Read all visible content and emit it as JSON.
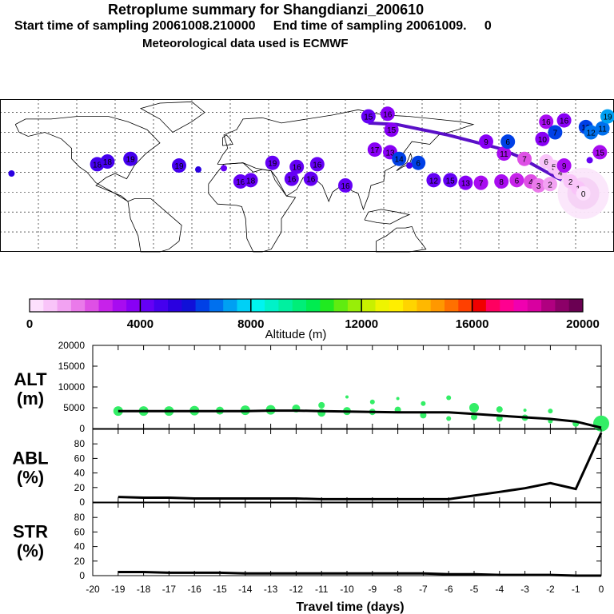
{
  "header": {
    "title": "Retroplume summary for Shangdianzi_200610",
    "sampling_line": "Start time of sampling 20061008.210000     End time of sampling 20061009.     0",
    "met_line": "Meteorological data used is ECMWF"
  },
  "colors": {
    "alt_points": "#33ee66",
    "map_outline": "#000000"
  },
  "colorbar": {
    "tick_labels": [
      "0",
      "4000",
      "8000",
      "12000",
      "16000",
      "20000"
    ],
    "label": "Altitude (m)",
    "colors": [
      "#fde0fd",
      "#f9c4f9",
      "#f2a2f2",
      "#ea7aea",
      "#de50e5",
      "#c722ea",
      "#a80cf0",
      "#8800f5",
      "#6500f5",
      "#4500ee",
      "#2a00e0",
      "#1010d8",
      "#0040e6",
      "#0070ee",
      "#00a0f2",
      "#00d0f6",
      "#00f4f0",
      "#00f2c8",
      "#00f0a0",
      "#00ee78",
      "#00ec50",
      "#20ea20",
      "#60ec10",
      "#98ee08",
      "#c8f000",
      "#eef400",
      "#ffee00",
      "#ffd400",
      "#ffb800",
      "#ff9800",
      "#ff7000",
      "#ff4000",
      "#f00000",
      "#ff0060",
      "#ff0090",
      "#f000b0",
      "#d800a0",
      "#b00080",
      "#8c0068",
      "#6a0052"
    ]
  },
  "map": {
    "plume_points": [
      {
        "lon": -171,
        "lat": 29,
        "alt": 5200,
        "label": ""
      },
      {
        "lon": -104,
        "lat": 36,
        "alt": 4800,
        "label": "18"
      },
      {
        "lon": -96,
        "lat": 38,
        "alt": 4700,
        "label": "18"
      },
      {
        "lon": -78,
        "lat": 40,
        "alt": 4500,
        "label": "19"
      },
      {
        "lon": -40,
        "lat": 35,
        "alt": 4800,
        "label": "19"
      },
      {
        "lon": -25,
        "lat": 32,
        "alt": 5000,
        "label": ""
      },
      {
        "lon": -5,
        "lat": 33,
        "alt": 4400,
        "label": ""
      },
      {
        "lon": 8,
        "lat": 23,
        "alt": 4000,
        "label": "16"
      },
      {
        "lon": 16,
        "lat": 24,
        "alt": 4000,
        "label": "18"
      },
      {
        "lon": 33,
        "lat": 37,
        "alt": 4200,
        "label": "19"
      },
      {
        "lon": 52,
        "lat": 34,
        "alt": 4300,
        "label": "16"
      },
      {
        "lon": 48,
        "lat": 25,
        "alt": 4100,
        "label": "16"
      },
      {
        "lon": 63,
        "lat": 25,
        "alt": 4100,
        "label": "16"
      },
      {
        "lon": 68,
        "lat": 36,
        "alt": 4200,
        "label": "16"
      },
      {
        "lon": 90,
        "lat": 20,
        "alt": 4000,
        "label": "16"
      },
      {
        "lon": 108,
        "lat": 72,
        "alt": 4000,
        "label": "15"
      },
      {
        "lon": 123,
        "lat": 74,
        "alt": 3800,
        "label": "16"
      },
      {
        "lon": 126,
        "lat": 62,
        "alt": 3700,
        "label": "15"
      },
      {
        "lon": 113,
        "lat": 47,
        "alt": 3600,
        "label": "17"
      },
      {
        "lon": 125,
        "lat": 45,
        "alt": 3500,
        "label": "13"
      },
      {
        "lon": 132,
        "lat": 40,
        "alt": 6200,
        "label": "14"
      },
      {
        "lon": 147,
        "lat": 37,
        "alt": 6000,
        "label": "6"
      },
      {
        "lon": 140,
        "lat": 35,
        "alt": 4500,
        "label": ""
      },
      {
        "lon": 159,
        "lat": 24,
        "alt": 4100,
        "label": "12"
      },
      {
        "lon": 172,
        "lat": 24,
        "alt": 4100,
        "label": "15"
      },
      {
        "lon": 184,
        "lat": 22,
        "alt": 3700,
        "label": "13"
      },
      {
        "lon": 196,
        "lat": 22,
        "alt": 3400,
        "label": "7"
      },
      {
        "lon": 212,
        "lat": 23,
        "alt": 3000,
        "label": "8"
      },
      {
        "lon": 224,
        "lat": 24,
        "alt": 2600,
        "label": "6"
      },
      {
        "lon": 214,
        "lat": 44,
        "alt": 3300,
        "label": "11"
      },
      {
        "lon": 230,
        "lat": 40,
        "alt": 2400,
        "label": "7"
      },
      {
        "lon": 200,
        "lat": 53,
        "alt": 3800,
        "label": "9"
      },
      {
        "lon": 217,
        "lat": 53,
        "alt": 6000,
        "label": "6"
      },
      {
        "lon": 235,
        "lat": 23,
        "alt": 2000,
        "label": "4"
      },
      {
        "lon": 241,
        "lat": 20,
        "alt": 1600,
        "label": "3"
      },
      {
        "lon": 250,
        "lat": 21,
        "alt": 1400,
        "label": "2"
      },
      {
        "lon": 247,
        "lat": 38,
        "alt": 800,
        "label": "6"
      },
      {
        "lon": 253,
        "lat": 34,
        "alt": 700,
        "label": "5"
      },
      {
        "lon": 258,
        "lat": 30,
        "alt": 700,
        "label": "4"
      },
      {
        "lon": 261,
        "lat": 35,
        "alt": 3200,
        "label": "9"
      },
      {
        "lon": 266,
        "lat": 23,
        "alt": 800,
        "label": "2"
      },
      {
        "lon": 272,
        "lat": 18,
        "alt": 600,
        "label": "1"
      },
      {
        "lon": 276,
        "lat": 14,
        "alt": 400,
        "label": "0"
      },
      {
        "lon": 247,
        "lat": 68,
        "alt": 3200,
        "label": "16"
      },
      {
        "lon": 261,
        "lat": 69,
        "alt": 3500,
        "label": "16"
      },
      {
        "lon": 254,
        "lat": 60,
        "alt": 6000,
        "label": "7"
      },
      {
        "lon": 278,
        "lat": 64,
        "alt": 6400,
        "label": "13"
      },
      {
        "lon": 291,
        "lat": 63,
        "alt": 6800,
        "label": "11"
      },
      {
        "lon": 282,
        "lat": 60,
        "alt": 6600,
        "label": "12"
      },
      {
        "lon": 244,
        "lat": 55,
        "alt": 3500,
        "label": "10"
      },
      {
        "lon": 289,
        "lat": 45,
        "alt": 3000,
        "label": "15"
      },
      {
        "lon": 281,
        "lat": 39,
        "alt": 4000,
        "label": ""
      },
      {
        "lon": 295,
        "lat": 72,
        "alt": 7200,
        "label": "19"
      }
    ]
  },
  "chart_data": {
    "type": "line",
    "xlabel": "Travel time (days)",
    "xlim": [
      -20,
      0
    ],
    "x_ticks": [
      "-20",
      "-19",
      "-18",
      "-17",
      "-16",
      "-15",
      "-14",
      "-13",
      "-12",
      "-11",
      "-10",
      "-9",
      "-8",
      "-7",
      "-6",
      "-5",
      "-4",
      "-3",
      "-2",
      "-1",
      "0"
    ],
    "panels": [
      {
        "ylabel": "ALT",
        "unit": "(m)",
        "ylim": [
          0,
          20000
        ],
        "y_ticks": [
          "0",
          "5000",
          "10000",
          "15000",
          "20000"
        ],
        "x": [
          -19,
          -18,
          -17,
          -16,
          -15,
          -14,
          -13,
          -12,
          -11,
          -10,
          -9,
          -8,
          -7,
          -6,
          -5,
          -4,
          -3,
          -2,
          -1,
          0
        ],
        "values": [
          4200,
          4200,
          4200,
          4200,
          4200,
          4200,
          4300,
          4300,
          4200,
          4100,
          4000,
          3900,
          3900,
          3900,
          3500,
          3100,
          2700,
          2300,
          1700,
          200
        ],
        "points": [
          {
            "x": -19,
            "y": 4200,
            "size": 6
          },
          {
            "x": -18,
            "y": 4200,
            "size": 6
          },
          {
            "x": -17,
            "y": 4200,
            "size": 6
          },
          {
            "x": -16,
            "y": 4300,
            "size": 6
          },
          {
            "x": -15,
            "y": 4300,
            "size": 5
          },
          {
            "x": -14,
            "y": 4400,
            "size": 6
          },
          {
            "x": -13,
            "y": 4500,
            "size": 6
          },
          {
            "x": -12,
            "y": 4800,
            "size": 5
          },
          {
            "x": -11,
            "y": 5600,
            "size": 4
          },
          {
            "x": -11,
            "y": 3800,
            "size": 5
          },
          {
            "x": -10,
            "y": 7600,
            "size": 2
          },
          {
            "x": -10,
            "y": 4200,
            "size": 5
          },
          {
            "x": -9,
            "y": 6400,
            "size": 3
          },
          {
            "x": -9,
            "y": 4000,
            "size": 4
          },
          {
            "x": -8,
            "y": 7200,
            "size": 2
          },
          {
            "x": -8,
            "y": 4500,
            "size": 4
          },
          {
            "x": -7,
            "y": 6000,
            "size": 3
          },
          {
            "x": -7,
            "y": 3200,
            "size": 4
          },
          {
            "x": -6,
            "y": 7400,
            "size": 3
          },
          {
            "x": -6,
            "y": 2400,
            "size": 3
          },
          {
            "x": -5,
            "y": 5000,
            "size": 6
          },
          {
            "x": -5,
            "y": 2800,
            "size": 4
          },
          {
            "x": -4,
            "y": 4600,
            "size": 4
          },
          {
            "x": -4,
            "y": 2400,
            "size": 4
          },
          {
            "x": -3,
            "y": 4400,
            "size": 2
          },
          {
            "x": -3,
            "y": 2600,
            "size": 4
          },
          {
            "x": -2,
            "y": 4200,
            "size": 3
          },
          {
            "x": -2,
            "y": 1800,
            "size": 3
          },
          {
            "x": -1,
            "y": 1200,
            "size": 4
          },
          {
            "x": 0,
            "y": 1200,
            "size": 10
          }
        ]
      },
      {
        "ylabel": "ABL",
        "unit": "(%)",
        "ylim": [
          0,
          100
        ],
        "y_ticks": [
          "0",
          "20",
          "40",
          "60",
          "80"
        ],
        "x": [
          -19,
          -18,
          -17,
          -16,
          -15,
          -14,
          -13,
          -12,
          -11,
          -10,
          -9,
          -8,
          -7,
          -6,
          -5,
          -4,
          -3,
          -2,
          -1,
          0
        ],
        "values": [
          7,
          6,
          6,
          5,
          5,
          5,
          5,
          5,
          4,
          4,
          4,
          4,
          4,
          4,
          9,
          14,
          19,
          26,
          18,
          95
        ]
      },
      {
        "ylabel": "STR",
        "unit": "(%)",
        "ylim": [
          0,
          100
        ],
        "y_ticks": [
          "0",
          "20",
          "40",
          "60",
          "80"
        ],
        "x": [
          -19,
          -18,
          -17,
          -16,
          -15,
          -14,
          -13,
          -12,
          -11,
          -10,
          -9,
          -8,
          -7,
          -6,
          -5,
          -4,
          -3,
          -2,
          -1,
          0
        ],
        "values": [
          5,
          5,
          4,
          4,
          4,
          3,
          3,
          3,
          3,
          3,
          3,
          3,
          3,
          2,
          2,
          1,
          1,
          1,
          0,
          0
        ]
      }
    ]
  }
}
